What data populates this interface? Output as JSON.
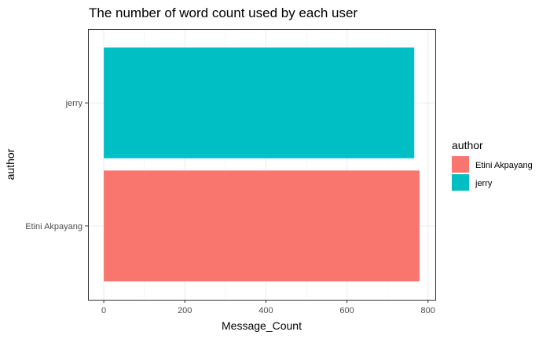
{
  "chart_data": {
    "type": "bar",
    "orientation": "horizontal",
    "title": "The number of word count used by each user",
    "xlabel": "Message_Count",
    "ylabel": "author",
    "categories": [
      "Etini Akpayang",
      "jerry"
    ],
    "values": [
      779,
      766
    ],
    "colors": [
      "#F8766D",
      "#00BFC4"
    ],
    "xlim": [
      0,
      800
    ],
    "x_ticks": [
      0,
      200,
      400,
      600,
      800
    ],
    "grid": true,
    "legend": {
      "title": "author",
      "placement": "right",
      "entries": [
        {
          "label": "Etini Akpayang",
          "color": "#F8766D"
        },
        {
          "label": "jerry",
          "color": "#00BFC4"
        }
      ]
    }
  }
}
